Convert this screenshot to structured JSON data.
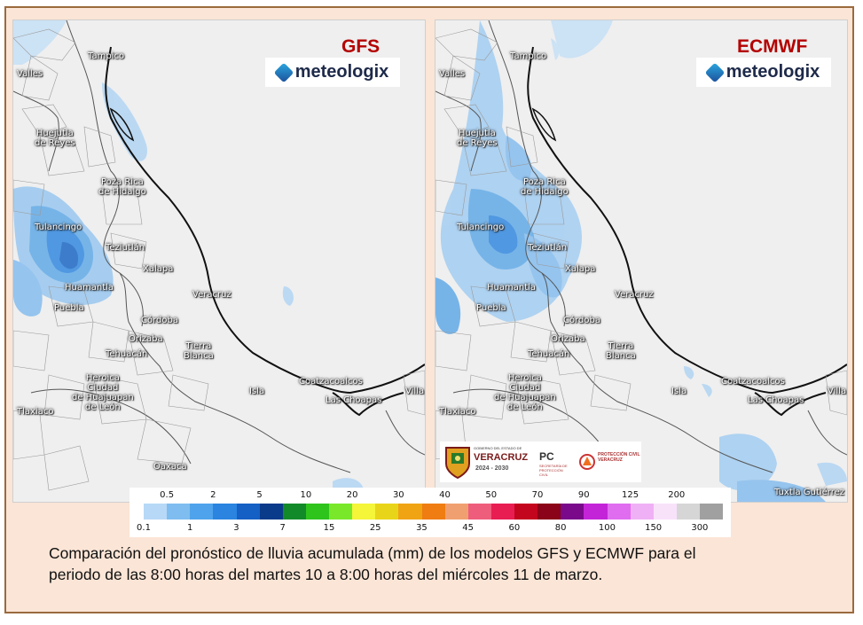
{
  "left_panel": {
    "title": "GFS",
    "brand": "meteologix"
  },
  "right_panel": {
    "title": "ECMWF",
    "brand": "meteologix"
  },
  "cities_left": [
    {
      "id": "tampico",
      "name": "Tampico"
    },
    {
      "id": "valles",
      "name": "Valles"
    },
    {
      "id": "huejutla",
      "name": "Huejutla\nde Reyes"
    },
    {
      "id": "pozarica",
      "name": "Poza Rica\nde Hidalgo"
    },
    {
      "id": "tulancingo",
      "name": "Tulancingo"
    },
    {
      "id": "teziutlan",
      "name": "Teziutlán"
    },
    {
      "id": "xalapa",
      "name": "Xalapa"
    },
    {
      "id": "veracruz",
      "name": "Veracruz"
    },
    {
      "id": "huamantla",
      "name": "Huamantla"
    },
    {
      "id": "puebla",
      "name": "Puebla"
    },
    {
      "id": "cordoba",
      "name": "Córdoba"
    },
    {
      "id": "orizaba",
      "name": "Orizaba"
    },
    {
      "id": "tehuacan",
      "name": "Tehuacán"
    },
    {
      "id": "tierrablanca",
      "name": "Tierra\nBlanca"
    },
    {
      "id": "coatzacoalcos",
      "name": "Coatzacoalcos"
    },
    {
      "id": "laschoapas",
      "name": "Las Choapas"
    },
    {
      "id": "isla",
      "name": "Isla"
    },
    {
      "id": "huajuapan",
      "name": "Heroica\nCiudad\nde Huajuapan\nde León"
    },
    {
      "id": "tlaxiaco",
      "name": "Tlaxiaco"
    },
    {
      "id": "villa",
      "name": "Villa"
    },
    {
      "id": "oaxaca",
      "name": "Oaxaca"
    }
  ],
  "cities_right": [
    {
      "id": "tampico",
      "name": "Tampico"
    },
    {
      "id": "valles",
      "name": "Valles"
    },
    {
      "id": "huejutla",
      "name": "Huejutla\nde Reyes"
    },
    {
      "id": "pozarica",
      "name": "Poza Rica\nde Hidalgo"
    },
    {
      "id": "tulancingo",
      "name": "Tulancingo"
    },
    {
      "id": "teziutlan",
      "name": "Teziutlán"
    },
    {
      "id": "xalapa",
      "name": "Xalapa"
    },
    {
      "id": "veracruz",
      "name": "Veracruz"
    },
    {
      "id": "huamantla",
      "name": "Huamantla"
    },
    {
      "id": "puebla",
      "name": "Puebla"
    },
    {
      "id": "cordoba",
      "name": "Córdoba"
    },
    {
      "id": "orizaba",
      "name": "Orizaba"
    },
    {
      "id": "tehuacan",
      "name": "Tehuacán"
    },
    {
      "id": "tierrablanca",
      "name": "Tierra\nBlanca"
    },
    {
      "id": "coatzacoalcos",
      "name": "Coatzacoalcos"
    },
    {
      "id": "laschoapas",
      "name": "Las Choapas"
    },
    {
      "id": "isla",
      "name": "Isla"
    },
    {
      "id": "huajuapan",
      "name": "Heroica\nCiudad\nde Huajuapan\nde León"
    },
    {
      "id": "tlaxiaco",
      "name": "Tlaxiaco"
    },
    {
      "id": "villa",
      "name": "Villa"
    },
    {
      "id": "tuxtla",
      "name": "Tuxtla Gutiérrez"
    }
  ],
  "legend": {
    "upper_labels": [
      "0.5",
      "2",
      "5",
      "10",
      "20",
      "30",
      "40",
      "50",
      "70",
      "90",
      "125",
      "200"
    ],
    "lower_labels": [
      "0.1",
      "1",
      "3",
      "7",
      "15",
      "25",
      "35",
      "45",
      "60",
      "80",
      "100",
      "150",
      "300"
    ],
    "colors": [
      "#b7d8f7",
      "#7fbdf0",
      "#4fa3ec",
      "#2a84e0",
      "#1560c4",
      "#0a3a8a",
      "#138a2a",
      "#2ec41c",
      "#79e82a",
      "#f5f53a",
      "#e8d51a",
      "#f0a414",
      "#ef7d12",
      "#f0a070",
      "#ef5d7c",
      "#e81d52",
      "#c4051e",
      "#8a0318",
      "#7a0a8a",
      "#c424d8",
      "#e06cf0",
      "#f0b0f5",
      "#f8e2fa",
      "#d6d6d6",
      "#a0a0a0"
    ]
  },
  "caption": {
    "line1": "Comparación del pronóstico de lluvia acumulada (mm) de los modelos GFS y ECMWF para el",
    "line2": "periodo de las 8:00 horas del martes 10 a 8:00 horas del miércoles 11 de marzo."
  },
  "gov_logo": {
    "line1": "GOBIERNO DEL ESTADO DE",
    "line2": "VERACRUZ",
    "line3": "2024 - 2030",
    "pc": "PC",
    "pc_sub": "SECRETARÍA DE PROTECCIÓN CIVIL",
    "pc2": "PROTECCIÓN CIVIL VERACRUZ"
  }
}
